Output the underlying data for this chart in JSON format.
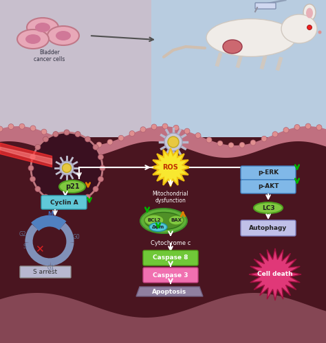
{
  "text_elements": {
    "bladder_cancer_cells": "Bladder\ncancer cells",
    "ROS": "ROS",
    "mitochondrial": "Mitochondrial\ndysfunction",
    "p21": "p21",
    "cyclin_a": "Cyclin A",
    "BCL2": "BCL2",
    "BAX": "BAX",
    "delta_psi": "Δψm",
    "cytochrome": "Cytochrome c",
    "caspase8": "Caspase 8",
    "caspase3": "Caspase 3",
    "apoptosis": "Apoptosis",
    "p_ERK": "p-ERK",
    "p_AKT": "p-AKT",
    "LC3": "LC3",
    "autophagy": "Autophagy",
    "cell_death": "Cell death",
    "s_arrest": "S arrest"
  }
}
